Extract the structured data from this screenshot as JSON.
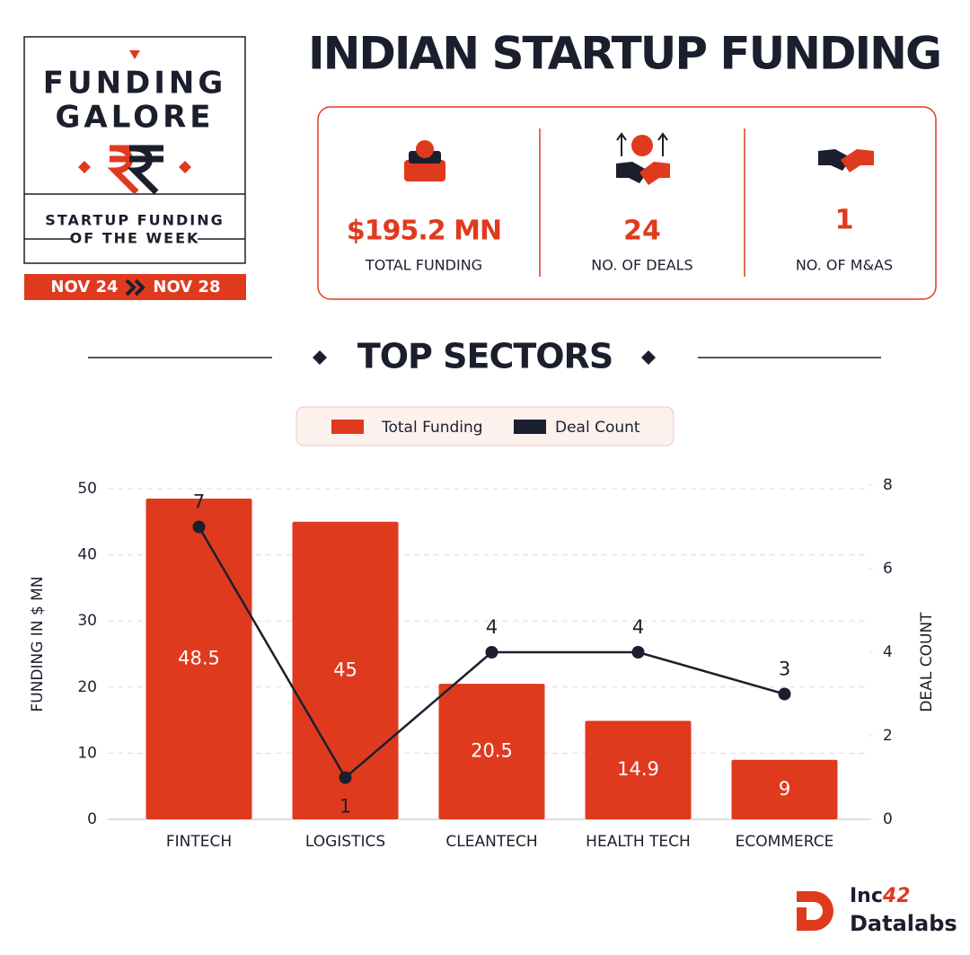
{
  "badge": {
    "line1": "FUNDING",
    "line2": "GALORE",
    "subtitle1": "STARTUP FUNDING",
    "subtitle2": "OF THE WEEK",
    "date_from": "NOV 24",
    "date_to": "NOV 28"
  },
  "title": "INDIAN STARTUP FUNDING",
  "stats": [
    {
      "value": "$195.2 MN",
      "label": "TOTAL FUNDING"
    },
    {
      "value": "24",
      "label": "NO. OF DEALS"
    },
    {
      "value": "1",
      "label": "NO. OF M&AS"
    }
  ],
  "section_title": "TOP SECTORS",
  "chart_data": {
    "type": "bar",
    "categories": [
      "FINTECH",
      "LOGISTICS",
      "CLEANTECH",
      "HEALTH TECH",
      "ECOMMERCE"
    ],
    "series": [
      {
        "name": "Total Funding",
        "type": "bar",
        "color": "#e03a1e",
        "values": [
          48.5,
          45,
          20.5,
          14.9,
          9
        ]
      },
      {
        "name": "Deal Count",
        "type": "line",
        "axis": "y2",
        "color": "#1b1f2d",
        "values": [
          7,
          1,
          4,
          4,
          3
        ]
      }
    ],
    "y_label": "FUNDING IN $ MN",
    "y2_label": "DEAL COUNT",
    "ylim": [
      0,
      50
    ],
    "yticks": [
      0,
      10,
      20,
      30,
      40,
      50
    ],
    "y2lim": [
      0,
      8
    ],
    "y2ticks": [
      0,
      2,
      4,
      6,
      8
    ],
    "grid": true,
    "legend": "top"
  },
  "logo": {
    "brand": "Inc",
    "brand_number": "42",
    "line2": "Datalabs"
  }
}
